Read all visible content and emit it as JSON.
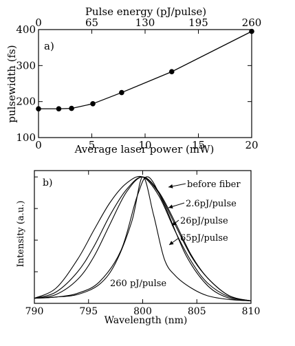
{
  "chart_data": [
    {
      "panel_label": "a)",
      "type": "line",
      "xlabel": "Average laser power (mW)",
      "ylabel": "pulsewidth (fs)",
      "top_xlabel": "Pulse energy (pJ/pulse)",
      "xlim": [
        0,
        20
      ],
      "ylim": [
        100,
        400
      ],
      "x_ticks": [
        0,
        5,
        10,
        15,
        20
      ],
      "y_ticks": [
        100,
        200,
        300,
        400
      ],
      "top_x_ticks": [
        {
          "label": "0",
          "power": 0
        },
        {
          "label": "65",
          "power": 5
        },
        {
          "label": "130",
          "power": 10
        },
        {
          "label": "195",
          "power": 15
        },
        {
          "label": "260",
          "power": 20
        }
      ],
      "grid": false,
      "x": [
        0,
        1.9,
        3.1,
        5.1,
        7.8,
        12.5,
        20
      ],
      "y": [
        180,
        180,
        181,
        194,
        225,
        283,
        395
      ]
    },
    {
      "panel_label": "b)",
      "type": "line",
      "xlabel": "Wavelength (nm)",
      "ylabel": "Intensity (a.u.)",
      "xlim": [
        790,
        810
      ],
      "ylim": [
        0,
        1.05
      ],
      "x_ticks": [
        790,
        795,
        800,
        805,
        810
      ],
      "grid": false,
      "series": [
        {
          "name": "before fiber",
          "x": [
            790,
            792,
            794,
            796,
            798,
            799.5,
            800.5,
            802,
            804,
            806,
            808,
            810
          ],
          "y": [
            0.04,
            0.05,
            0.08,
            0.17,
            0.42,
            0.85,
            1.0,
            0.78,
            0.38,
            0.14,
            0.04,
            0.02
          ]
        },
        {
          "name": "2.6pJ/pulse",
          "x": [
            790,
            792,
            794,
            795.5,
            797,
            798.5,
            800,
            801.5,
            803,
            804.5,
            806,
            808,
            810
          ],
          "y": [
            0.04,
            0.07,
            0.19,
            0.37,
            0.63,
            0.88,
            1.0,
            0.88,
            0.64,
            0.38,
            0.2,
            0.06,
            0.02
          ]
        },
        {
          "name": "26pJ/pulse",
          "x": [
            790,
            792,
            794,
            795.5,
            797,
            798.5,
            800,
            801.5,
            803,
            804.5,
            806,
            808,
            810
          ],
          "y": [
            0.04,
            0.09,
            0.25,
            0.45,
            0.7,
            0.9,
            1.0,
            0.87,
            0.62,
            0.37,
            0.2,
            0.06,
            0.02
          ]
        },
        {
          "name": "65pJ/pulse",
          "x": [
            790,
            792,
            794,
            795.5,
            797,
            798.5,
            800,
            801.5,
            803,
            804.5,
            806,
            808,
            810
          ],
          "y": [
            0.04,
            0.12,
            0.35,
            0.58,
            0.8,
            0.95,
            1.0,
            0.85,
            0.57,
            0.33,
            0.16,
            0.05,
            0.02
          ]
        },
        {
          "name": "260 pJ/pulse",
          "x": [
            790,
            792,
            794,
            796,
            797.5,
            799,
            800,
            801,
            802,
            803,
            804.5,
            806,
            808,
            810
          ],
          "y": [
            0.04,
            0.05,
            0.07,
            0.15,
            0.32,
            0.65,
            1.0,
            0.7,
            0.35,
            0.22,
            0.12,
            0.06,
            0.03,
            0.02
          ]
        }
      ]
    }
  ]
}
